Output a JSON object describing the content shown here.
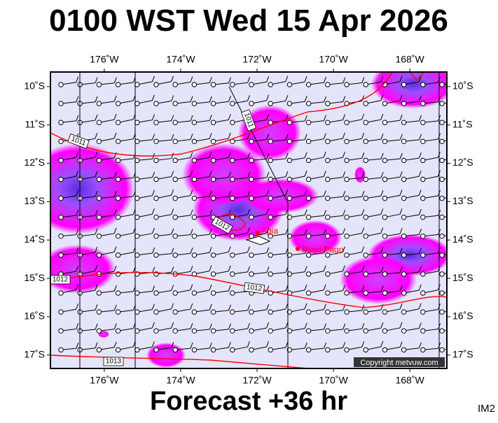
{
  "header": {
    "title": "0100 WST Wed 15 Apr 2026"
  },
  "map": {
    "lonlim": [
      -177.41,
      -167.03
    ],
    "latlim": [
      -9.62,
      -17.35
    ],
    "xticks": [
      {
        "value": -176,
        "label": "176˚W"
      },
      {
        "value": -174,
        "label": "174˚W"
      },
      {
        "value": -172,
        "label": "172˚W"
      },
      {
        "value": -170,
        "label": "170˚W"
      },
      {
        "value": -168,
        "label": "168˚W"
      }
    ],
    "yticks": [
      {
        "value": -10,
        "label": "10˚S"
      },
      {
        "value": -11,
        "label": "11˚S"
      },
      {
        "value": -12,
        "label": "12˚S"
      },
      {
        "value": -13,
        "label": "13˚S"
      },
      {
        "value": -14,
        "label": "14˚S"
      },
      {
        "value": -15,
        "label": "15˚S"
      },
      {
        "value": -16,
        "label": "16˚S"
      },
      {
        "value": -17,
        "label": "17˚S"
      }
    ],
    "isobar_labels": [
      "1011",
      "1011",
      "1012",
      "1012",
      "1012",
      "1013"
    ],
    "places": [
      "Apia",
      "Pago Pago"
    ],
    "copyright": "Copyright metvuw.com"
  },
  "footer": {
    "forecast": "Forecast +36 hr",
    "code": "IM2"
  }
}
